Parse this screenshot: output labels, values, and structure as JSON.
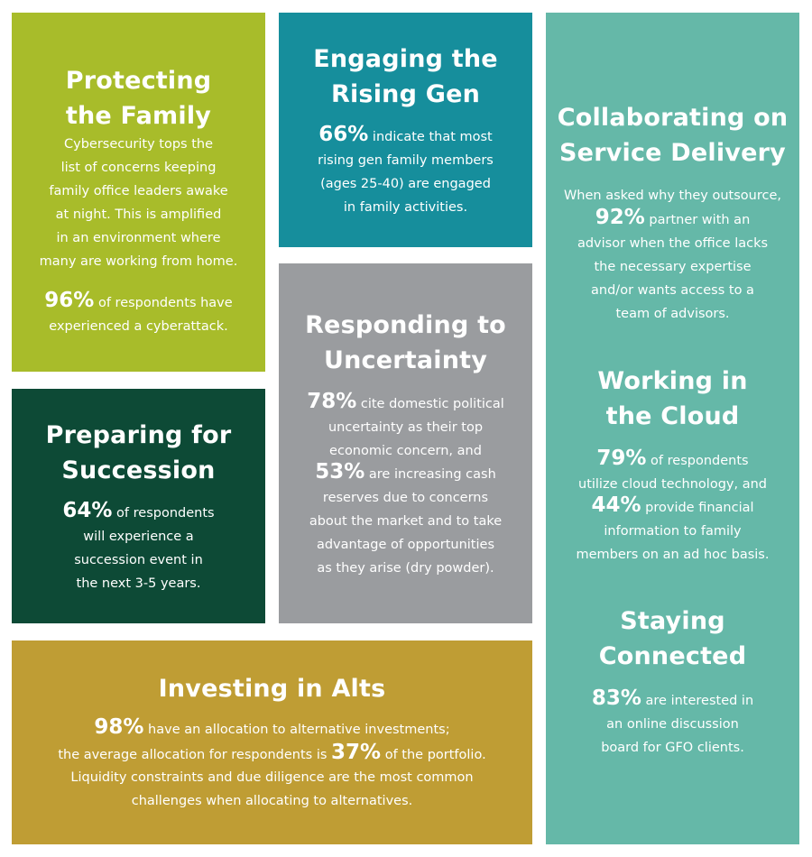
{
  "protecting": {
    "title": "Protecting\nthe Family",
    "body1": "Cybersecurity tops the\nlist of concerns keeping\nfamily office leaders awake\nat night. This is amplified\nin an environment where\nmany are working from home.",
    "stat": "96%",
    "stat_text": " of respondents have\nexperienced a cyberattack."
  },
  "succession": {
    "title": "Preparing for\nSuccession",
    "stat": "64%",
    "stat_text": " of respondents\nwill experience a\nsuccession event in\nthe next 3-5 years."
  },
  "rising": {
    "title": "Engaging the\nRising Gen",
    "stat": "66%",
    "stat_text": " indicate that most\nrising gen family members\n(ages 25-40) are engaged\nin family activities."
  },
  "uncertainty": {
    "title": "Responding to\nUncertainty",
    "stat1": "78%",
    "stat1_text": " cite domestic political\nuncertainty as their top\neconomic concern, and",
    "stat2": "53%",
    "stat2_text": " are increasing cash\nreserves due to concerns\nabout the market and to take\nadvantage of opportunities\nas they arise (dry powder)."
  },
  "alts": {
    "title": "Investing in Alts",
    "stat1": "98%",
    "stat1_text": " have an allocation to alternative investments;",
    "line2_pre": "the average allocation for respondents is ",
    "stat2": "37%",
    "line2_post": " of the portfolio.",
    "line3": "Liquidity constraints and due diligence are the most common\nchallenges when allocating to alternatives."
  },
  "collab": {
    "title": "Collaborating on\nService Delivery",
    "intro": "When asked why they outsource,",
    "stat": "92%",
    "stat_text": " partner with an\nadvisor when the office lacks\nthe necessary expertise\nand/or wants access to a\nteam of advisors."
  },
  "cloud": {
    "title": "Working in\nthe Cloud",
    "stat1": "79%",
    "stat1_text": " of respondents\nutilize cloud technology, and",
    "stat2": "44%",
    "stat2_text": " provide financial\ninformation to family\nmembers on an ad hoc basis."
  },
  "connected": {
    "title": "Staying\nConnected",
    "stat": "83%",
    "stat_text": " are interested in\nan online discussion\nboard for GFO clients."
  },
  "colors": {
    "lime": "#a8bc2a",
    "dark_green": "#0d4a36",
    "teal": "#168e9c",
    "gray": "#9a9c9f",
    "gold": "#bf9d34",
    "seafoam": "#65b8a8"
  }
}
